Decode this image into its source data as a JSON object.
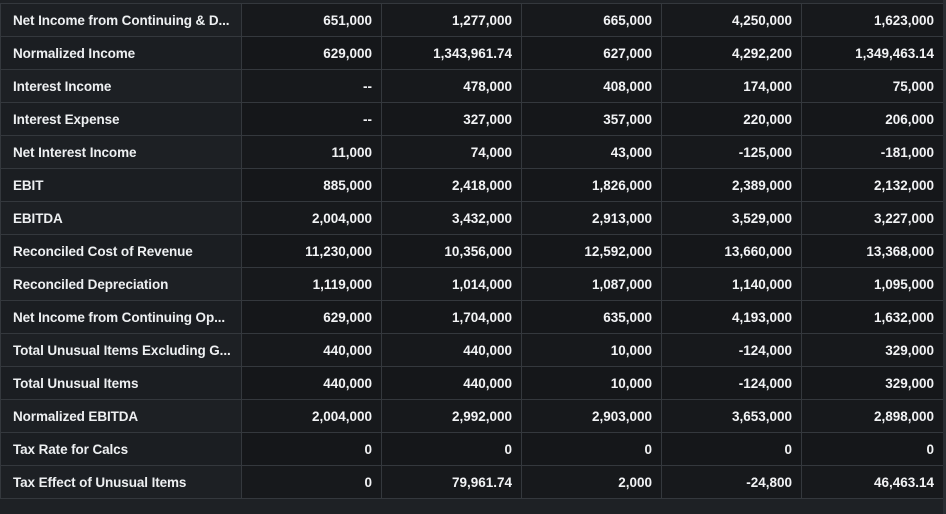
{
  "table": {
    "rows": [
      {
        "label": "Net Income from Continuing & D...",
        "values": [
          "651,000",
          "1,277,000",
          "665,000",
          "4,250,000",
          "1,623,000"
        ]
      },
      {
        "label": "Normalized Income",
        "values": [
          "629,000",
          "1,343,961.74",
          "627,000",
          "4,292,200",
          "1,349,463.14"
        ]
      },
      {
        "label": "Interest Income",
        "values": [
          "--",
          "478,000",
          "408,000",
          "174,000",
          "75,000"
        ]
      },
      {
        "label": "Interest Expense",
        "values": [
          "--",
          "327,000",
          "357,000",
          "220,000",
          "206,000"
        ]
      },
      {
        "label": "Net Interest Income",
        "values": [
          "11,000",
          "74,000",
          "43,000",
          "-125,000",
          "-181,000"
        ]
      },
      {
        "label": "EBIT",
        "values": [
          "885,000",
          "2,418,000",
          "1,826,000",
          "2,389,000",
          "2,132,000"
        ]
      },
      {
        "label": "EBITDA",
        "values": [
          "2,004,000",
          "3,432,000",
          "2,913,000",
          "3,529,000",
          "3,227,000"
        ]
      },
      {
        "label": "Reconciled Cost of Revenue",
        "values": [
          "11,230,000",
          "10,356,000",
          "12,592,000",
          "13,660,000",
          "13,368,000"
        ]
      },
      {
        "label": "Reconciled Depreciation",
        "values": [
          "1,119,000",
          "1,014,000",
          "1,087,000",
          "1,140,000",
          "1,095,000"
        ]
      },
      {
        "label": "Net Income from Continuing Op...",
        "values": [
          "629,000",
          "1,704,000",
          "635,000",
          "4,193,000",
          "1,632,000"
        ]
      },
      {
        "label": "Total Unusual Items Excluding G...",
        "values": [
          "440,000",
          "440,000",
          "10,000",
          "-124,000",
          "329,000"
        ]
      },
      {
        "label": "Total Unusual Items",
        "values": [
          "440,000",
          "440,000",
          "10,000",
          "-124,000",
          "329,000"
        ]
      },
      {
        "label": "Normalized EBITDA",
        "values": [
          "2,004,000",
          "2,992,000",
          "2,903,000",
          "3,653,000",
          "2,898,000"
        ]
      },
      {
        "label": "Tax Rate for Calcs",
        "values": [
          "0",
          "0",
          "0",
          "0",
          "0"
        ]
      },
      {
        "label": "Tax Effect of Unusual Items",
        "values": [
          "0",
          "79,961.74",
          "2,000",
          "-24,800",
          "46,463.14"
        ]
      }
    ]
  }
}
